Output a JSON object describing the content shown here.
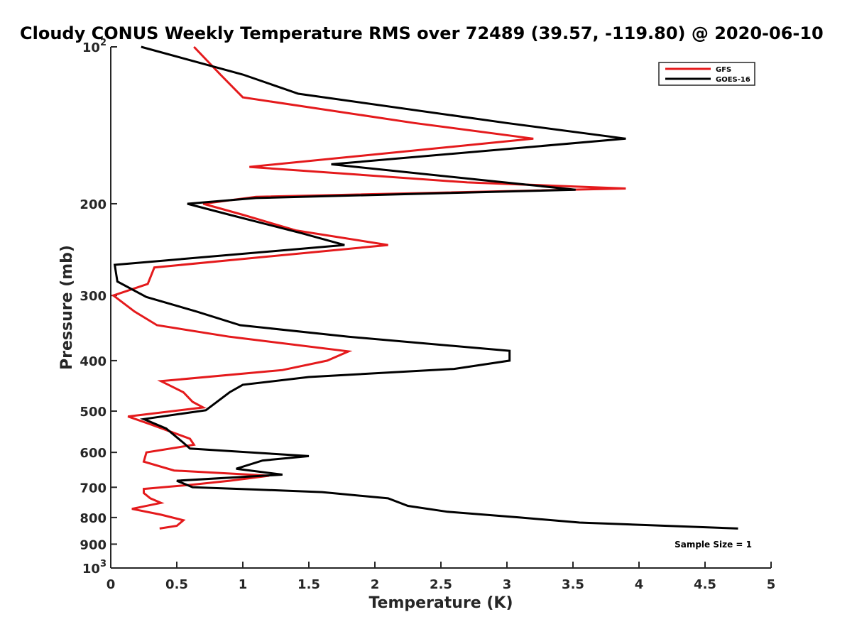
{
  "chart_data": {
    "type": "line",
    "title": "Cloudy CONUS Weekly Temperature RMS over 72489 (39.57, -119.80) @ 2020-06-10",
    "xlabel": "Temperature (K)",
    "ylabel": "Pressure (mb)",
    "xlim": [
      0,
      5
    ],
    "ylim": [
      100,
      1000
    ],
    "y_scale": "log",
    "y_reversed": true,
    "grid": false,
    "legend_position": "top-right",
    "x_ticks": [
      0,
      0.5,
      1,
      1.5,
      2,
      2.5,
      3,
      3.5,
      4,
      4.5,
      5
    ],
    "x_tick_labels": [
      "0",
      "0.5",
      "1",
      "1.5",
      "2",
      "2.5",
      "3",
      "3.5",
      "4",
      "4.5",
      "5"
    ],
    "y_ticks": [
      {
        "value": 100,
        "base": "10",
        "exp": "2"
      },
      {
        "value": 200,
        "label": "200"
      },
      {
        "value": 300,
        "label": "300"
      },
      {
        "value": 400,
        "label": "400"
      },
      {
        "value": 500,
        "label": "500"
      },
      {
        "value": 600,
        "label": "600"
      },
      {
        "value": 700,
        "label": "700"
      },
      {
        "value": 800,
        "label": "800"
      },
      {
        "value": 900,
        "label": "900"
      },
      {
        "value": 1000,
        "base": "10",
        "exp": "3"
      }
    ],
    "annotation": "Sample Size = 1",
    "series": [
      {
        "name": "GFS",
        "color": "#e41a1c",
        "points": [
          [
            0.63,
            100
          ],
          [
            0.83,
            113
          ],
          [
            1.0,
            125
          ],
          [
            2.3,
            140
          ],
          [
            3.2,
            150
          ],
          [
            1.05,
            170
          ],
          [
            2.7,
            182
          ],
          [
            3.9,
            187
          ],
          [
            1.1,
            194
          ],
          [
            0.7,
            200
          ],
          [
            1.0,
            210
          ],
          [
            1.4,
            225
          ],
          [
            2.1,
            240
          ],
          [
            0.33,
            265
          ],
          [
            0.28,
            285
          ],
          [
            0.02,
            300
          ],
          [
            0.18,
            322
          ],
          [
            0.35,
            342
          ],
          [
            0.9,
            360
          ],
          [
            1.8,
            384
          ],
          [
            1.64,
            400
          ],
          [
            1.3,
            417
          ],
          [
            0.38,
            438
          ],
          [
            0.55,
            460
          ],
          [
            0.62,
            480
          ],
          [
            0.7,
            492
          ],
          [
            0.13,
            512
          ],
          [
            0.3,
            530
          ],
          [
            0.6,
            565
          ],
          [
            0.63,
            580
          ],
          [
            0.27,
            600
          ],
          [
            0.25,
            625
          ],
          [
            0.48,
            650
          ],
          [
            1.2,
            665
          ],
          [
            0.9,
            680
          ],
          [
            0.62,
            692
          ],
          [
            0.25,
            705
          ],
          [
            0.25,
            718
          ],
          [
            0.3,
            735
          ],
          [
            0.38,
            750
          ],
          [
            0.16,
            770
          ],
          [
            0.38,
            790
          ],
          [
            0.55,
            810
          ],
          [
            0.5,
            830
          ],
          [
            0.37,
            840
          ]
        ]
      },
      {
        "name": "GOES-16",
        "color": "#000000",
        "points": [
          [
            0.23,
            100
          ],
          [
            1.0,
            113
          ],
          [
            1.42,
            123
          ],
          [
            3.0,
            140
          ],
          [
            3.9,
            150
          ],
          [
            1.67,
            168
          ],
          [
            2.8,
            180
          ],
          [
            3.52,
            188
          ],
          [
            1.1,
            195
          ],
          [
            0.58,
            200
          ],
          [
            0.9,
            210
          ],
          [
            1.45,
            228
          ],
          [
            1.77,
            240
          ],
          [
            0.03,
            262
          ],
          [
            0.05,
            282
          ],
          [
            0.27,
            302
          ],
          [
            0.65,
            322
          ],
          [
            0.98,
            342
          ],
          [
            1.8,
            360
          ],
          [
            3.02,
            383
          ],
          [
            3.02,
            400
          ],
          [
            2.6,
            415
          ],
          [
            1.5,
            430
          ],
          [
            1.0,
            445
          ],
          [
            0.9,
            460
          ],
          [
            0.72,
            498
          ],
          [
            0.25,
            518
          ],
          [
            0.42,
            540
          ],
          [
            0.55,
            575
          ],
          [
            0.6,
            590
          ],
          [
            1.5,
            610
          ],
          [
            1.15,
            622
          ],
          [
            0.95,
            645
          ],
          [
            1.3,
            662
          ],
          [
            0.5,
            680
          ],
          [
            0.62,
            700
          ],
          [
            1.1,
            707
          ],
          [
            1.6,
            715
          ],
          [
            2.1,
            735
          ],
          [
            2.25,
            760
          ],
          [
            2.55,
            780
          ],
          [
            3.1,
            800
          ],
          [
            3.55,
            818
          ],
          [
            4.75,
            840
          ]
        ]
      }
    ]
  }
}
